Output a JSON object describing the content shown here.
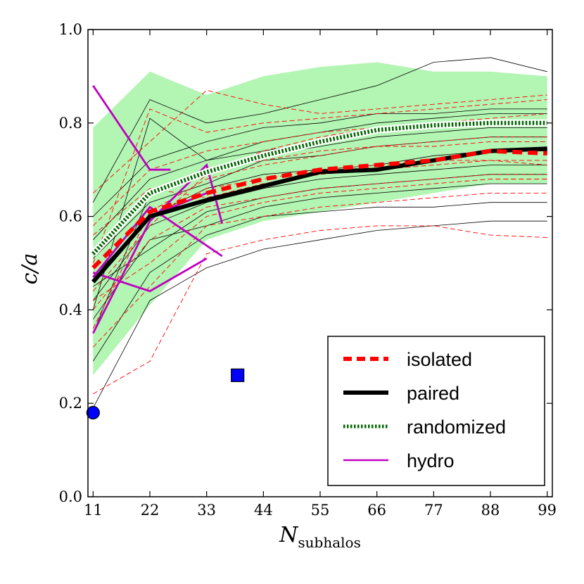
{
  "chart_data": {
    "type": "line",
    "xlabel": "N",
    "xlabel_sub": "subhalos",
    "ylabel": "c/a",
    "xlim": [
      10,
      100
    ],
    "ylim": [
      0.0,
      1.0
    ],
    "xticks": [
      11,
      22,
      33,
      44,
      55,
      66,
      77,
      88,
      99
    ],
    "yticks": [
      0.0,
      0.2,
      0.4,
      0.6,
      0.8,
      1.0
    ],
    "ytick_labels": [
      "0.0",
      "0.2",
      "0.4",
      "0.6",
      "0.8",
      "1.0"
    ],
    "grid": false,
    "legend_position": "lower-right",
    "colors": {
      "isolated": "#ff0000",
      "paired": "#000000",
      "randomized": "#006400",
      "hydro": "#bf00bf",
      "band": "#b3f5b3",
      "markers": "#0000ff"
    },
    "band": {
      "x": [
        11,
        22,
        33,
        44,
        55,
        66,
        77,
        88,
        99
      ],
      "upper": [
        0.79,
        0.91,
        0.86,
        0.9,
        0.92,
        0.93,
        0.91,
        0.91,
        0.9
      ],
      "lower": [
        0.26,
        0.41,
        0.55,
        0.59,
        0.61,
        0.63,
        0.65,
        0.67,
        0.67
      ]
    },
    "series": [
      {
        "name": "isolated",
        "style": "dashed",
        "x": [
          11,
          22,
          33,
          44,
          55,
          66,
          77,
          88,
          99
        ],
        "values": [
          0.49,
          0.61,
          0.65,
          0.68,
          0.7,
          0.71,
          0.72,
          0.74,
          0.735
        ]
      },
      {
        "name": "paired",
        "style": "solid",
        "x": [
          11,
          22,
          33,
          44,
          55,
          66,
          77,
          88,
          99
        ],
        "values": [
          0.46,
          0.6,
          0.635,
          0.665,
          0.695,
          0.7,
          0.72,
          0.74,
          0.745
        ]
      },
      {
        "name": "randomized",
        "style": "dotted",
        "x": [
          11,
          22,
          33,
          44,
          55,
          66,
          77,
          88,
          99
        ],
        "values": [
          0.52,
          0.65,
          0.695,
          0.73,
          0.76,
          0.785,
          0.795,
          0.8,
          0.8
        ]
      }
    ],
    "hydro_paths": [
      {
        "x": [
          11,
          22,
          26
        ],
        "values": [
          0.88,
          0.7,
          0.7
        ]
      },
      {
        "x": [
          11,
          22,
          33,
          36
        ],
        "values": [
          0.35,
          0.59,
          0.71,
          0.585
        ]
      },
      {
        "x": [
          11,
          22,
          33
        ],
        "values": [
          0.48,
          0.44,
          0.51
        ]
      },
      {
        "x": [
          22,
          33
        ],
        "values": [
          0.6,
          0.65
        ]
      },
      {
        "x": [
          11,
          22,
          36
        ],
        "values": [
          0.47,
          0.62,
          0.515
        ]
      }
    ],
    "thin_paired": [
      [
        0.19,
        0.42,
        0.49,
        0.53,
        0.55,
        0.57,
        0.58,
        0.59,
        0.59
      ],
      [
        0.29,
        0.48,
        0.56,
        0.6,
        0.61,
        0.62,
        0.62,
        0.63,
        0.63
      ],
      [
        0.38,
        0.55,
        0.58,
        0.62,
        0.64,
        0.65,
        0.66,
        0.67,
        0.67
      ],
      [
        0.42,
        0.58,
        0.63,
        0.66,
        0.68,
        0.69,
        0.7,
        0.71,
        0.71
      ],
      [
        0.47,
        0.6,
        0.66,
        0.69,
        0.7,
        0.71,
        0.73,
        0.74,
        0.74
      ],
      [
        0.51,
        0.63,
        0.67,
        0.72,
        0.73,
        0.75,
        0.76,
        0.77,
        0.77
      ],
      [
        0.55,
        0.68,
        0.72,
        0.74,
        0.76,
        0.78,
        0.79,
        0.8,
        0.8
      ],
      [
        0.6,
        0.72,
        0.76,
        0.79,
        0.8,
        0.82,
        0.82,
        0.83,
        0.83
      ],
      [
        0.63,
        0.85,
        0.8,
        0.82,
        0.85,
        0.88,
        0.93,
        0.94,
        0.91
      ],
      [
        0.4,
        0.81,
        0.72,
        0.76,
        0.78,
        0.8,
        0.81,
        0.82,
        0.82
      ],
      [
        0.45,
        0.53,
        0.61,
        0.64,
        0.66,
        0.67,
        0.68,
        0.69,
        0.69
      ],
      [
        0.35,
        0.65,
        0.7,
        0.73,
        0.75,
        0.77,
        0.78,
        0.79,
        0.79
      ]
    ],
    "thin_isolated": [
      [
        0.22,
        0.29,
        0.52,
        0.55,
        0.57,
        0.58,
        0.58,
        0.56,
        0.555
      ],
      [
        0.32,
        0.45,
        0.58,
        0.6,
        0.62,
        0.63,
        0.64,
        0.65,
        0.65
      ],
      [
        0.4,
        0.55,
        0.62,
        0.64,
        0.66,
        0.67,
        0.68,
        0.69,
        0.69
      ],
      [
        0.46,
        0.6,
        0.66,
        0.68,
        0.7,
        0.71,
        0.72,
        0.72,
        0.72
      ],
      [
        0.52,
        0.65,
        0.7,
        0.72,
        0.74,
        0.75,
        0.75,
        0.76,
        0.76
      ],
      [
        0.58,
        0.7,
        0.74,
        0.76,
        0.78,
        0.79,
        0.8,
        0.8,
        0.8
      ],
      [
        0.65,
        0.76,
        0.87,
        0.84,
        0.82,
        0.83,
        0.84,
        0.85,
        0.86
      ],
      [
        0.5,
        0.83,
        0.78,
        0.8,
        0.81,
        0.82,
        0.83,
        0.84,
        0.85
      ],
      [
        0.42,
        0.5,
        0.6,
        0.63,
        0.65,
        0.66,
        0.67,
        0.68,
        0.68
      ],
      [
        0.36,
        0.61,
        0.68,
        0.71,
        0.73,
        0.75,
        0.76,
        0.77,
        0.77
      ],
      [
        0.56,
        0.66,
        0.64,
        0.67,
        0.69,
        0.7,
        0.71,
        0.72,
        0.71
      ],
      [
        0.44,
        0.58,
        0.69,
        0.74,
        0.77,
        0.79,
        0.8,
        0.81,
        0.82
      ]
    ],
    "markers": [
      {
        "shape": "circle",
        "x": 11,
        "y": 0.18
      },
      {
        "shape": "square",
        "x": 39,
        "y": 0.26
      }
    ],
    "legend": [
      {
        "key": "isolated",
        "label": "isolated",
        "style": "dashed"
      },
      {
        "key": "paired",
        "label": "paired",
        "style": "solid"
      },
      {
        "key": "randomized",
        "label": "randomized",
        "style": "dotted"
      },
      {
        "key": "hydro",
        "label": "hydro",
        "style": "thin"
      }
    ]
  }
}
